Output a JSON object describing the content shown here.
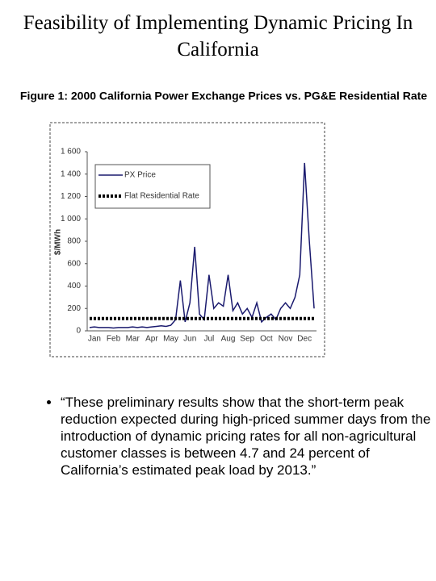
{
  "title": "Feasibility of Implementing Dynamic Pricing In California",
  "bullet": "“These preliminary results show that the short-term peak reduction expected during high-priced summer days from the introduction of dynamic pricing rates for all non-agricultural customer classes is between 4.7 and 24 percent of California’s estimated peak load by 2013.”",
  "chart_data": {
    "type": "line",
    "title": "Figure 1: 2000 California Power Exchange Prices vs. PG&E Residential Rate",
    "y_label": "$/MWh",
    "categories": [
      null,
      "Jan",
      null,
      null,
      null,
      "Feb",
      null,
      null,
      null,
      "Mar",
      null,
      null,
      null,
      "Apr",
      null,
      null,
      null,
      "May",
      null,
      null,
      null,
      "Jun",
      null,
      null,
      null,
      "Jul",
      null,
      null,
      null,
      "Aug",
      null,
      null,
      null,
      "Sep",
      null,
      null,
      null,
      "Oct",
      null,
      null,
      null,
      "Nov",
      null,
      null,
      null,
      "Dec",
      null,
      null
    ],
    "series": [
      {
        "name": "PX Price",
        "color": "#1a1a6e",
        "style": "solid",
        "values": [
          30,
          35,
          30,
          30,
          30,
          25,
          30,
          30,
          30,
          35,
          30,
          35,
          30,
          35,
          40,
          45,
          40,
          50,
          100,
          450,
          80,
          250,
          750,
          150,
          100,
          500,
          200,
          250,
          220,
          500,
          180,
          250,
          150,
          200,
          120,
          250,
          80,
          120,
          150,
          100,
          200,
          250,
          200,
          300,
          500,
          1500,
          800,
          200
        ]
      },
      {
        "name": "Flat Residential Rate",
        "color": "#000000",
        "style": "dotted",
        "values": [
          110,
          110,
          110,
          110,
          110,
          110,
          110,
          110,
          110,
          110,
          110,
          110,
          110,
          110,
          110,
          110,
          110,
          110,
          110,
          110,
          110,
          110,
          110,
          110,
          110,
          110,
          110,
          110,
          110,
          110,
          110,
          110,
          110,
          110,
          110,
          110,
          110,
          110,
          110,
          110,
          110,
          110,
          110,
          110,
          110,
          110,
          110,
          110
        ]
      }
    ],
    "ylim": [
      0,
      1600
    ],
    "yticks": [
      0,
      200,
      400,
      600,
      800,
      {
        "value": 1000,
        "label": "1 000"
      },
      {
        "value": 1200,
        "label": "1 200"
      },
      {
        "value": 1400,
        "label": "1 400"
      },
      {
        "value": 1600,
        "label": "1 600"
      }
    ],
    "grid": false,
    "legend": "upper-left"
  }
}
